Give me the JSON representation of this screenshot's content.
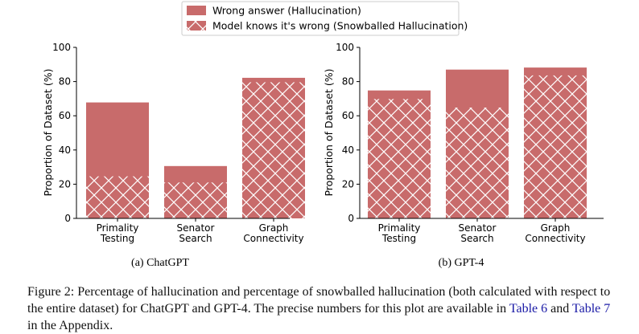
{
  "legend": {
    "items": [
      {
        "label": "Wrong answer (Hallucination)",
        "pattern": "solid"
      },
      {
        "label": "Model knows it's wrong (Snowballed Hallucination)",
        "pattern": "crosshatch"
      }
    ]
  },
  "colors": {
    "bar": "#c86b6b",
    "hatch": "#ffffff",
    "axis": "#000000",
    "link": "#1a1aa6"
  },
  "chart_data": [
    {
      "type": "bar",
      "title": "(a) ChatGPT",
      "ylabel": "Proportion of Dataset (%)",
      "xlabel": "",
      "ylim": [
        0,
        100
      ],
      "yticks": [
        0,
        20,
        40,
        60,
        80,
        100
      ],
      "categories": [
        [
          "Primality",
          "Testing"
        ],
        [
          "Senator",
          "Search"
        ],
        [
          "Graph",
          "Connectivity"
        ]
      ],
      "series": [
        {
          "name": "Wrong answer (Hallucination)",
          "values": [
            67.8,
            30.6,
            82.2
          ]
        },
        {
          "name": "Model knows it's wrong (Snowballed Hallucination)",
          "values": [
            24.6,
            21.0,
            79.6
          ]
        }
      ]
    },
    {
      "type": "bar",
      "title": "(b) GPT-4",
      "ylabel": "Proportion of Dataset (%)",
      "xlabel": "",
      "ylim": [
        0,
        100
      ],
      "yticks": [
        0,
        20,
        40,
        60,
        80,
        100
      ],
      "categories": [
        [
          "Primality",
          "Testing"
        ],
        [
          "Senator",
          "Search"
        ],
        [
          "Graph",
          "Connectivity"
        ]
      ],
      "series": [
        {
          "name": "Wrong answer (Hallucination)",
          "values": [
            74.8,
            87.0,
            88.2
          ]
        },
        {
          "name": "Model knows it's wrong (Snowballed Hallucination)",
          "values": [
            69.8,
            64.8,
            83.6
          ]
        }
      ]
    }
  ],
  "caption": {
    "text_before": "Figure 2: Percentage of hallucination and percentage of snowballed hallucination (both calculated with respect to the entire dataset) for ChatGPT and GPT-4. The precise numbers for this plot are available in ",
    "link1": "Table 6",
    "text_middle": " and ",
    "link2": "Table 7",
    "text_after": " in the Appendix."
  }
}
